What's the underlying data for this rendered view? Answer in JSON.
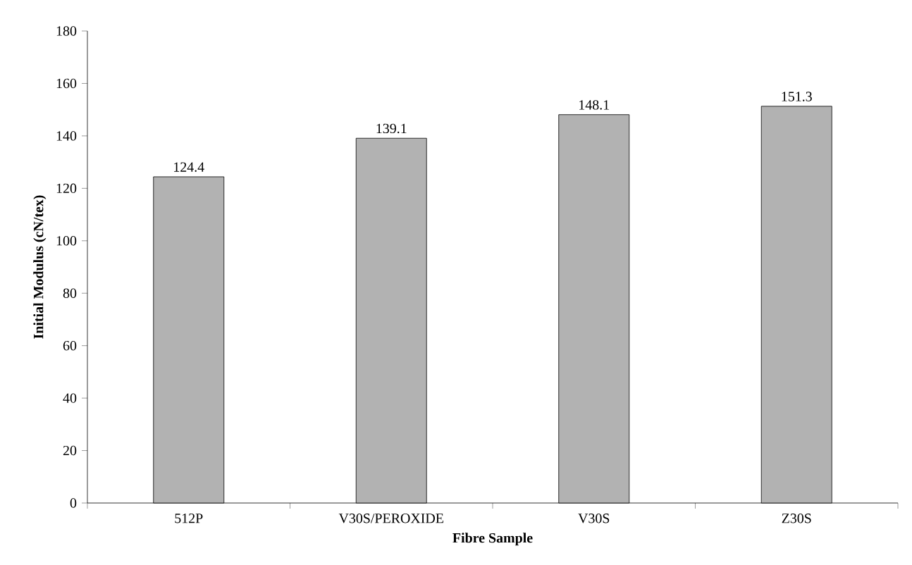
{
  "chart_data": {
    "type": "bar",
    "xlabel": "Fibre Sample",
    "ylabel": "Initial Modulus (cN/tex)",
    "categories": [
      "512P",
      "V30S/PEROXIDE",
      "V30S",
      "Z30S"
    ],
    "values": [
      124.4,
      139.1,
      148.1,
      151.3
    ],
    "color": "#b2b2b2",
    "ylim": [
      0,
      180
    ],
    "yticks": [
      0,
      20,
      40,
      60,
      80,
      100,
      120,
      140,
      160,
      180
    ],
    "data_labels": true
  }
}
